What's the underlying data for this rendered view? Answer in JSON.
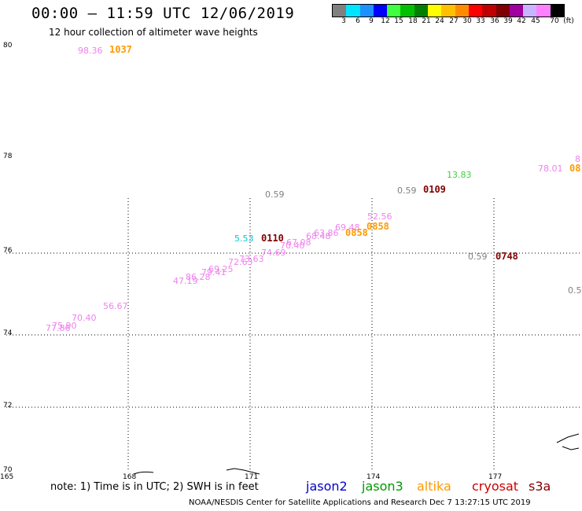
{
  "title": "00:00 — 11:59 UTC 12/06/2019",
  "subtitle": "12 hour collection of altimeter wave heights",
  "legend": {
    "colors": [
      "#808080",
      "#00e5ff",
      "#1e90ff",
      "#0000ff",
      "#40ff40",
      "#00c000",
      "#008000",
      "#ffff00",
      "#ffc000",
      "#ff8c00",
      "#ff0000",
      "#c00000",
      "#800000",
      "#a000a0",
      "#c8b4ff",
      "#ff80ff",
      "#000000"
    ],
    "labels": [
      "3",
      "6",
      "9",
      "12",
      "15",
      "18",
      "21",
      "24",
      "27",
      "30",
      "33",
      "36",
      "39",
      "42",
      "45",
      "70",
      "(ft)"
    ]
  },
  "axes": {
    "lat_labels": [
      "80",
      "78",
      "76",
      "74",
      "72",
      "70"
    ],
    "lon_labels": [
      "165",
      "168",
      "171",
      "174",
      "177"
    ]
  },
  "swh_labels": [
    {
      "text": "98.36",
      "color": "#ee82ee"
    },
    {
      "text": "0.59",
      "color": "#808080"
    },
    {
      "text": "13.83",
      "color": "#40d040"
    },
    {
      "text": "0.59",
      "color": "#808080"
    },
    {
      "text": "78.01",
      "color": "#ee82ee"
    },
    {
      "text": "8",
      "color": "#ee82ee"
    },
    {
      "text": "52.56",
      "color": "#ee82ee"
    },
    {
      "text": "69.48",
      "color": "#ee82ee"
    },
    {
      "text": "63.86",
      "color": "#ee82ee"
    },
    {
      "text": "68.48",
      "color": "#ee82ee"
    },
    {
      "text": "67.08",
      "color": "#ee82ee"
    },
    {
      "text": "70.40",
      "color": "#ee82ee"
    },
    {
      "text": "74.69",
      "color": "#ee82ee"
    },
    {
      "text": "73.63",
      "color": "#ee82ee"
    },
    {
      "text": "72.63",
      "color": "#ee82ee"
    },
    {
      "text": "5.53",
      "color": "#00c8d8"
    },
    {
      "text": "0.59",
      "color": "#808080"
    },
    {
      "text": "0.5",
      "color": "#808080"
    },
    {
      "text": "69.25",
      "color": "#ee82ee"
    },
    {
      "text": "79.41",
      "color": "#ee82ee"
    },
    {
      "text": "86.28",
      "color": "#ee82ee"
    },
    {
      "text": "47.19",
      "color": "#ee82ee"
    },
    {
      "text": "56.67",
      "color": "#ee82ee"
    },
    {
      "text": "70.40",
      "color": "#ee82ee"
    },
    {
      "text": "75.90",
      "color": "#ee82ee"
    },
    {
      "text": "77.86",
      "color": "#ee82ee"
    }
  ],
  "time_labels": [
    {
      "text": "1037",
      "color": "#ff9900"
    },
    {
      "text": "0109",
      "color": "#800000"
    },
    {
      "text": "08",
      "color": "#ff9900"
    },
    {
      "text": "0858",
      "color": "#ff9900"
    },
    {
      "text": "0858",
      "color": "#ff9900"
    },
    {
      "text": "0110",
      "color": "#800000"
    },
    {
      "text": "0748",
      "color": "#800000"
    }
  ],
  "note": "note: 1) Time is in UTC; 2) SWH is in feet",
  "satellites": [
    {
      "name": "jason2",
      "color": "#0000cc"
    },
    {
      "name": "jason3",
      "color": "#009900"
    },
    {
      "name": "altika",
      "color": "#ff9900"
    },
    {
      "name": "cryosat",
      "color": "#cc0000"
    },
    {
      "name": "s3a",
      "color": "#800000"
    }
  ],
  "credit": "NOAA/NESDIS Center for Satellite Applications and Research    Dec  7 13:27:15 UTC 2019"
}
